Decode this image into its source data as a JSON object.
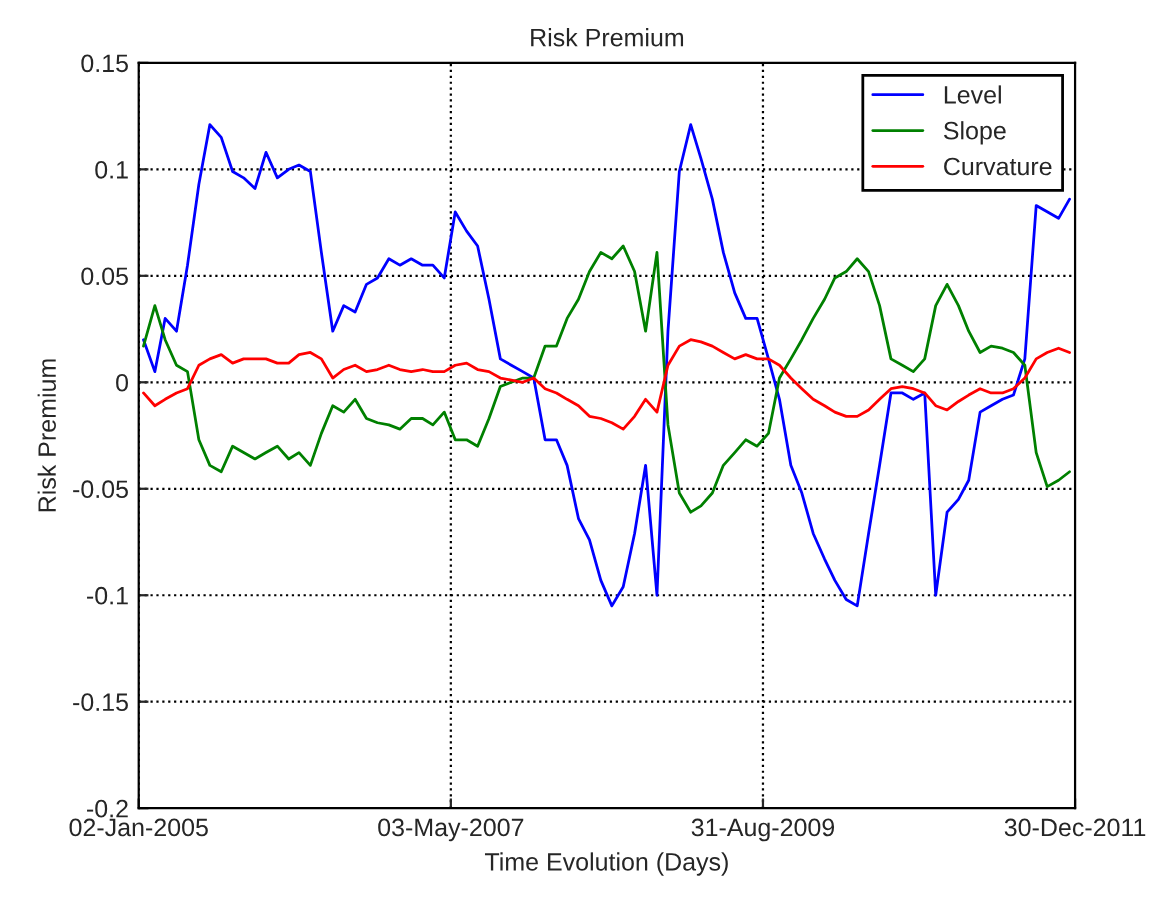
{
  "chart_data": {
    "type": "line",
    "title": "Risk Premium",
    "xlabel": "Time Evolution (Days)",
    "ylabel": "Risk Premium",
    "x": [
      "2005-01-15",
      "2005-02-15",
      "2005-03-15",
      "2005-04-15",
      "2005-05-15",
      "2005-06-15",
      "2005-07-15",
      "2005-08-15",
      "2005-09-15",
      "2005-10-15",
      "2005-11-15",
      "2005-12-15",
      "2006-01-15",
      "2006-02-15",
      "2006-03-15",
      "2006-04-15",
      "2006-05-15",
      "2006-06-15",
      "2006-07-15",
      "2006-08-15",
      "2006-09-15",
      "2006-10-15",
      "2006-11-15",
      "2006-12-15",
      "2007-01-15",
      "2007-02-15",
      "2007-03-15",
      "2007-04-15",
      "2007-05-15",
      "2007-06-15",
      "2007-07-15",
      "2007-08-15",
      "2007-09-15",
      "2007-10-15",
      "2007-11-15",
      "2007-12-15",
      "2008-01-15",
      "2008-02-15",
      "2008-03-15",
      "2008-04-15",
      "2008-05-15",
      "2008-06-15",
      "2008-07-15",
      "2008-08-15",
      "2008-09-15",
      "2008-10-15",
      "2008-11-15",
      "2008-12-15",
      "2009-01-15",
      "2009-02-15",
      "2009-03-15",
      "2009-04-15",
      "2009-05-15",
      "2009-06-15",
      "2009-07-15",
      "2009-08-15",
      "2009-09-15",
      "2009-10-15",
      "2009-11-15",
      "2009-12-15",
      "2010-01-15",
      "2010-02-15",
      "2010-03-15",
      "2010-04-15",
      "2010-05-15",
      "2010-06-15",
      "2010-07-15",
      "2010-08-15",
      "2010-09-15",
      "2010-10-15",
      "2010-11-15",
      "2010-12-15",
      "2011-01-15",
      "2011-02-15",
      "2011-03-15",
      "2011-04-15",
      "2011-05-15",
      "2011-06-15",
      "2011-07-15",
      "2011-08-15",
      "2011-09-15",
      "2011-10-15",
      "2011-11-15",
      "2011-12-15"
    ],
    "series": [
      {
        "name": "Level",
        "color": "#0000ff",
        "values": [
          0.02,
          0.005,
          0.03,
          0.024,
          0.055,
          0.093,
          0.121,
          0.115,
          0.099,
          0.096,
          0.091,
          0.108,
          0.096,
          0.1,
          0.102,
          0.099,
          0.061,
          0.024,
          0.036,
          0.033,
          0.046,
          0.049,
          0.058,
          0.055,
          0.058,
          0.055,
          0.055,
          0.049,
          0.08,
          0.071,
          0.064,
          0.039,
          0.011,
          0.008,
          0.005,
          0.002,
          -0.027,
          -0.027,
          -0.039,
          -0.064,
          -0.074,
          -0.093,
          -0.105,
          -0.096,
          -0.071,
          -0.039,
          -0.1,
          0.024,
          0.099,
          0.121,
          0.105,
          0.086,
          0.061,
          0.042,
          0.03,
          0.03,
          0.011,
          -0.008,
          -0.039,
          -0.052,
          -0.071,
          -0.083,
          -0.093,
          -0.102,
          -0.105,
          -0.071,
          -0.039,
          -0.005,
          -0.005,
          -0.008,
          -0.005,
          -0.1,
          -0.061,
          -0.055,
          -0.046,
          -0.014,
          -0.011,
          -0.008,
          -0.006,
          0.011,
          0.083,
          null,
          0.077,
          0.086
        ]
      },
      {
        "name": "Slope",
        "color": "#008000",
        "values": [
          0.017,
          0.036,
          0.02,
          0.008,
          0.005,
          -0.027,
          -0.039,
          -0.042,
          -0.03,
          -0.033,
          -0.036,
          -0.033,
          -0.03,
          -0.036,
          -0.033,
          -0.039,
          -0.024,
          -0.011,
          -0.014,
          -0.008,
          -0.017,
          -0.019,
          -0.02,
          -0.022,
          -0.017,
          -0.017,
          -0.02,
          -0.014,
          -0.027,
          -0.027,
          -0.03,
          -0.017,
          -0.002,
          0.0,
          0.002,
          0.002,
          0.017,
          0.017,
          0.03,
          0.039,
          0.052,
          0.061,
          0.058,
          0.064,
          0.052,
          0.024,
          0.061,
          -0.02,
          -0.052,
          -0.061,
          -0.058,
          -0.052,
          -0.039,
          -0.033,
          -0.027,
          -0.03,
          -0.024,
          0.002,
          0.011,
          0.02,
          0.03,
          0.039,
          0.049,
          0.052,
          0.058,
          0.052,
          0.036,
          0.011,
          0.008,
          0.005,
          0.011,
          0.036,
          0.046,
          0.036,
          0.024,
          0.014,
          0.017,
          0.016,
          0.014,
          0.008,
          -0.033,
          -0.049,
          -0.046,
          -0.042
        ]
      },
      {
        "name": "Curvature",
        "color": "#ff0000",
        "values": [
          -0.005,
          -0.011,
          -0.008,
          -0.005,
          -0.003,
          0.008,
          0.011,
          0.013,
          0.009,
          0.011,
          0.011,
          0.011,
          0.009,
          0.009,
          0.013,
          0.014,
          0.011,
          0.002,
          0.006,
          0.008,
          0.005,
          0.006,
          0.008,
          0.006,
          0.005,
          0.006,
          0.005,
          0.005,
          0.008,
          0.009,
          0.006,
          0.005,
          0.002,
          0.001,
          0.0,
          0.002,
          -0.003,
          -0.005,
          -0.008,
          -0.011,
          -0.016,
          -0.017,
          -0.019,
          -0.022,
          -0.016,
          -0.008,
          -0.014,
          0.008,
          0.017,
          0.02,
          0.019,
          0.017,
          0.014,
          0.011,
          0.013,
          0.011,
          0.011,
          0.008,
          0.002,
          -0.003,
          -0.008,
          -0.011,
          -0.014,
          -0.016,
          -0.016,
          -0.013,
          -0.008,
          -0.003,
          -0.002,
          -0.003,
          -0.005,
          -0.011,
          -0.013,
          -0.009,
          -0.006,
          -0.003,
          -0.005,
          -0.005,
          -0.003,
          0.002,
          0.011,
          0.014,
          0.016,
          0.014
        ]
      }
    ],
    "xlim": [
      "2005-01-02",
      "2011-12-30"
    ],
    "xticks": [
      {
        "value": "2005-01-02",
        "label": "02-Jan-2005"
      },
      {
        "value": "2007-05-03",
        "label": "03-May-2007"
      },
      {
        "value": "2009-08-31",
        "label": "31-Aug-2009"
      },
      {
        "value": "2011-12-30",
        "label": "30-Dec-2011"
      }
    ],
    "ylim": [
      -0.2,
      0.15
    ],
    "yticks": [
      -0.2,
      -0.15,
      -0.1,
      -0.05,
      0,
      0.05,
      0.1,
      0.15
    ],
    "grid": true,
    "legend": "top right",
    "line_style": "solid"
  }
}
